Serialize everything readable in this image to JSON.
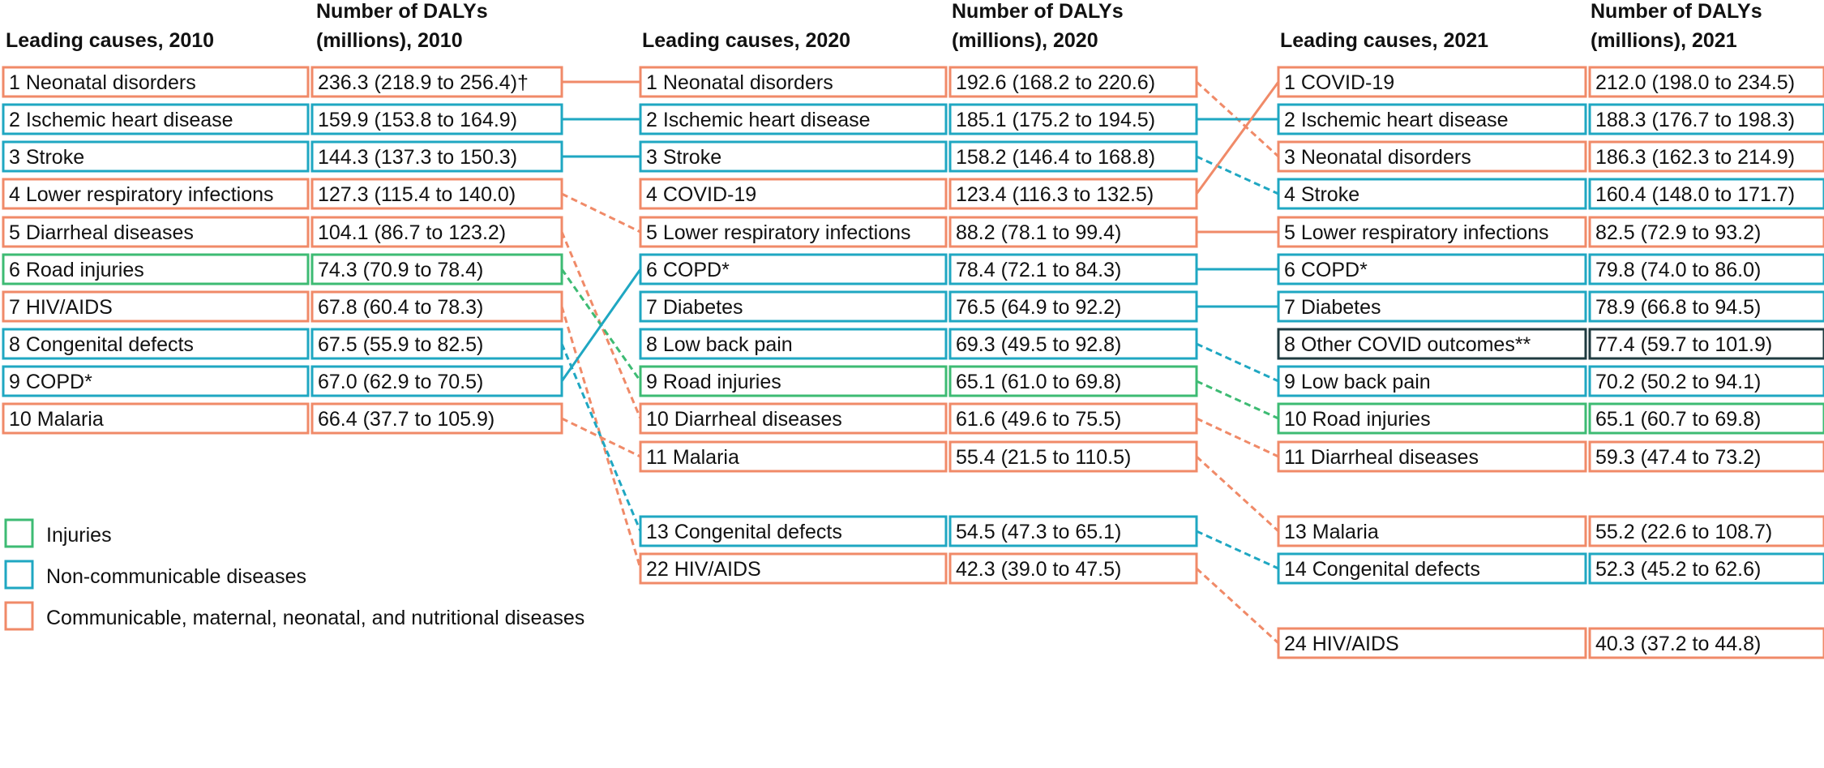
{
  "colors": {
    "injury": "#3dbb73",
    "ncd": "#1fa7c2",
    "cmnn": "#f08a68",
    "other": "#1f3b40"
  },
  "headers": [
    {
      "cause": "Leading causes, 2010",
      "value_line1": "Number of DALYs",
      "value_line2": "(millions), 2010"
    },
    {
      "cause": "Leading causes, 2020",
      "value_line1": "Number of DALYs",
      "value_line2": "(millions), 2020"
    },
    {
      "cause": "Leading causes, 2021",
      "value_line1": "Number of DALYs",
      "value_line2": "(millions), 2021"
    }
  ],
  "columns": [
    {
      "year": "2010",
      "rows": [
        {
          "id": "neonatal",
          "cause": "1 Neonatal disorders",
          "value": "236.3 (218.9 to 256.4)†",
          "category": "cmnn"
        },
        {
          "id": "ihd",
          "cause": "2 Ischemic heart disease",
          "value": "159.9 (153.8 to 164.9)",
          "category": "ncd"
        },
        {
          "id": "stroke",
          "cause": "3 Stroke",
          "value": "144.3 (137.3 to 150.3)",
          "category": "ncd"
        },
        {
          "id": "lri",
          "cause": "4 Lower respiratory infections",
          "value": "127.3 (115.4 to 140.0)",
          "category": "cmnn"
        },
        {
          "id": "diarrheal",
          "cause": "5 Diarrheal diseases",
          "value": "104.1 (86.7 to 123.2)",
          "category": "cmnn"
        },
        {
          "id": "road",
          "cause": "6 Road injuries",
          "value": "74.3 (70.9 to 78.4)",
          "category": "injury"
        },
        {
          "id": "hiv",
          "cause": "7 HIV/AIDS",
          "value": "67.8 (60.4 to 78.3)",
          "category": "cmnn"
        },
        {
          "id": "congenital",
          "cause": "8 Congenital defects",
          "value": "67.5 (55.9 to 82.5)",
          "category": "ncd"
        },
        {
          "id": "copd",
          "cause": "9 COPD*",
          "value": "67.0 (62.9 to 70.5)",
          "category": "ncd"
        },
        {
          "id": "malaria",
          "cause": "10 Malaria",
          "value": "66.4 (37.7 to 105.9)",
          "category": "cmnn"
        }
      ]
    },
    {
      "year": "2020",
      "rows": [
        {
          "id": "neonatal",
          "cause": "1 Neonatal disorders",
          "value": "192.6 (168.2 to 220.6)",
          "category": "cmnn"
        },
        {
          "id": "ihd",
          "cause": "2 Ischemic heart disease",
          "value": "185.1 (175.2 to 194.5)",
          "category": "ncd"
        },
        {
          "id": "stroke",
          "cause": "3 Stroke",
          "value": "158.2 (146.4 to 168.8)",
          "category": "ncd"
        },
        {
          "id": "covid",
          "cause": "4 COVID-19",
          "value": "123.4 (116.3 to 132.5)",
          "category": "cmnn"
        },
        {
          "id": "lri",
          "cause": "5 Lower respiratory infections",
          "value": "88.2 (78.1 to 99.4)",
          "category": "cmnn"
        },
        {
          "id": "copd",
          "cause": "6 COPD*",
          "value": "78.4 (72.1 to 84.3)",
          "category": "ncd"
        },
        {
          "id": "diabetes",
          "cause": "7 Diabetes",
          "value": "76.5 (64.9 to 92.2)",
          "category": "ncd"
        },
        {
          "id": "backpain",
          "cause": "8 Low back pain",
          "value": "69.3 (49.5 to 92.8)",
          "category": "ncd"
        },
        {
          "id": "road",
          "cause": "9 Road injuries",
          "value": "65.1 (61.0 to 69.8)",
          "category": "injury"
        },
        {
          "id": "diarrheal",
          "cause": "10 Diarrheal diseases",
          "value": "61.6 (49.6 to 75.5)",
          "category": "cmnn"
        },
        {
          "id": "malaria",
          "cause": "11 Malaria",
          "value": "55.4 (21.5 to 110.5)",
          "category": "cmnn"
        },
        {
          "id": "congenital",
          "cause": "13 Congenital defects",
          "value": "54.5 (47.3 to 65.1)",
          "category": "ncd"
        },
        {
          "id": "hiv",
          "cause": "22 HIV/AIDS",
          "value": "42.3 (39.0 to 47.5)",
          "category": "cmnn"
        }
      ]
    },
    {
      "year": "2021",
      "rows": [
        {
          "id": "covid",
          "cause": "1 COVID-19",
          "value": "212.0 (198.0 to 234.5)",
          "category": "cmnn"
        },
        {
          "id": "ihd",
          "cause": "2 Ischemic heart disease",
          "value": "188.3 (176.7 to 198.3)",
          "category": "ncd"
        },
        {
          "id": "neonatal",
          "cause": "3 Neonatal disorders",
          "value": "186.3 (162.3 to 214.9)",
          "category": "cmnn"
        },
        {
          "id": "stroke",
          "cause": "4 Stroke",
          "value": "160.4 (148.0 to 171.7)",
          "category": "ncd"
        },
        {
          "id": "lri",
          "cause": "5 Lower respiratory infections",
          "value": "82.5 (72.9 to 93.2)",
          "category": "cmnn"
        },
        {
          "id": "copd",
          "cause": "6 COPD*",
          "value": "79.8 (74.0 to 86.0)",
          "category": "ncd"
        },
        {
          "id": "diabetes",
          "cause": "7 Diabetes",
          "value": "78.9 (66.8 to 94.5)",
          "category": "ncd"
        },
        {
          "id": "othercovid",
          "cause": "8 Other COVID outcomes**",
          "value": "77.4 (59.7 to 101.9)",
          "category": "other"
        },
        {
          "id": "backpain",
          "cause": "9 Low back pain",
          "value": "70.2 (50.2 to 94.1)",
          "category": "ncd"
        },
        {
          "id": "road",
          "cause": "10 Road injuries",
          "value": "65.1 (60.7 to 69.8)",
          "category": "injury"
        },
        {
          "id": "diarrheal",
          "cause": "11 Diarrheal diseases",
          "value": "59.3 (47.4 to 73.2)",
          "category": "cmnn"
        },
        {
          "id": "malaria",
          "cause": "13 Malaria",
          "value": "55.2 (22.6 to 108.7)",
          "category": "cmnn"
        },
        {
          "id": "congenital",
          "cause": "14 Congenital defects",
          "value": "52.3 (45.2 to 62.6)",
          "category": "ncd"
        },
        {
          "id": "hiv",
          "cause": "24 HIV/AIDS",
          "value": "40.3 (37.2 to 44.8)",
          "category": "cmnn"
        }
      ]
    }
  ],
  "legend": [
    {
      "category": "injury",
      "label": "Injuries"
    },
    {
      "category": "ncd",
      "label": "Non-communicable diseases"
    },
    {
      "category": "cmnn",
      "label": "Communicable, maternal, neonatal, and nutritional diseases"
    }
  ]
}
